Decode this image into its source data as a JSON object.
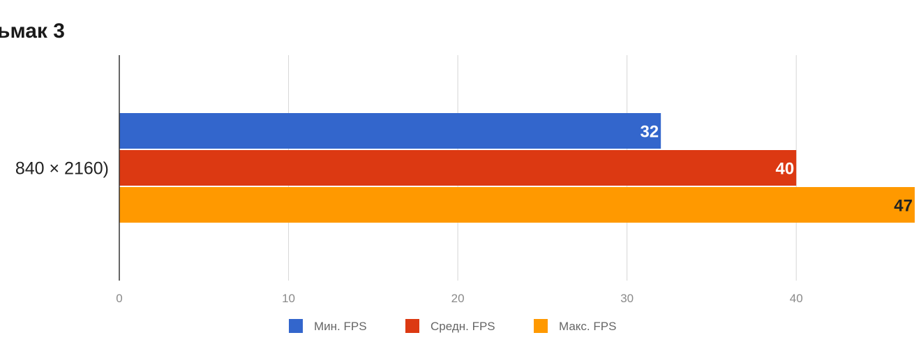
{
  "chart_data": {
    "type": "bar",
    "orientation": "horizontal",
    "title": "ьмак 3",
    "categories": [
      "840 × 2160)"
    ],
    "series": [
      {
        "name": "Мин. FPS",
        "values": [
          32
        ],
        "color": "#3366cc",
        "label_color": "#ffffff"
      },
      {
        "name": "Средн. FPS",
        "values": [
          40
        ],
        "color": "#dc3912",
        "label_color": "#ffffff"
      },
      {
        "name": "Макс. FPS",
        "values": [
          47
        ],
        "color": "#ff9900",
        "label_color": "#222222"
      }
    ],
    "xlim": [
      0,
      47
    ],
    "x_ticks": [
      "0",
      "10",
      "20",
      "30",
      "40"
    ],
    "grid": true,
    "legend_position": "bottom"
  }
}
